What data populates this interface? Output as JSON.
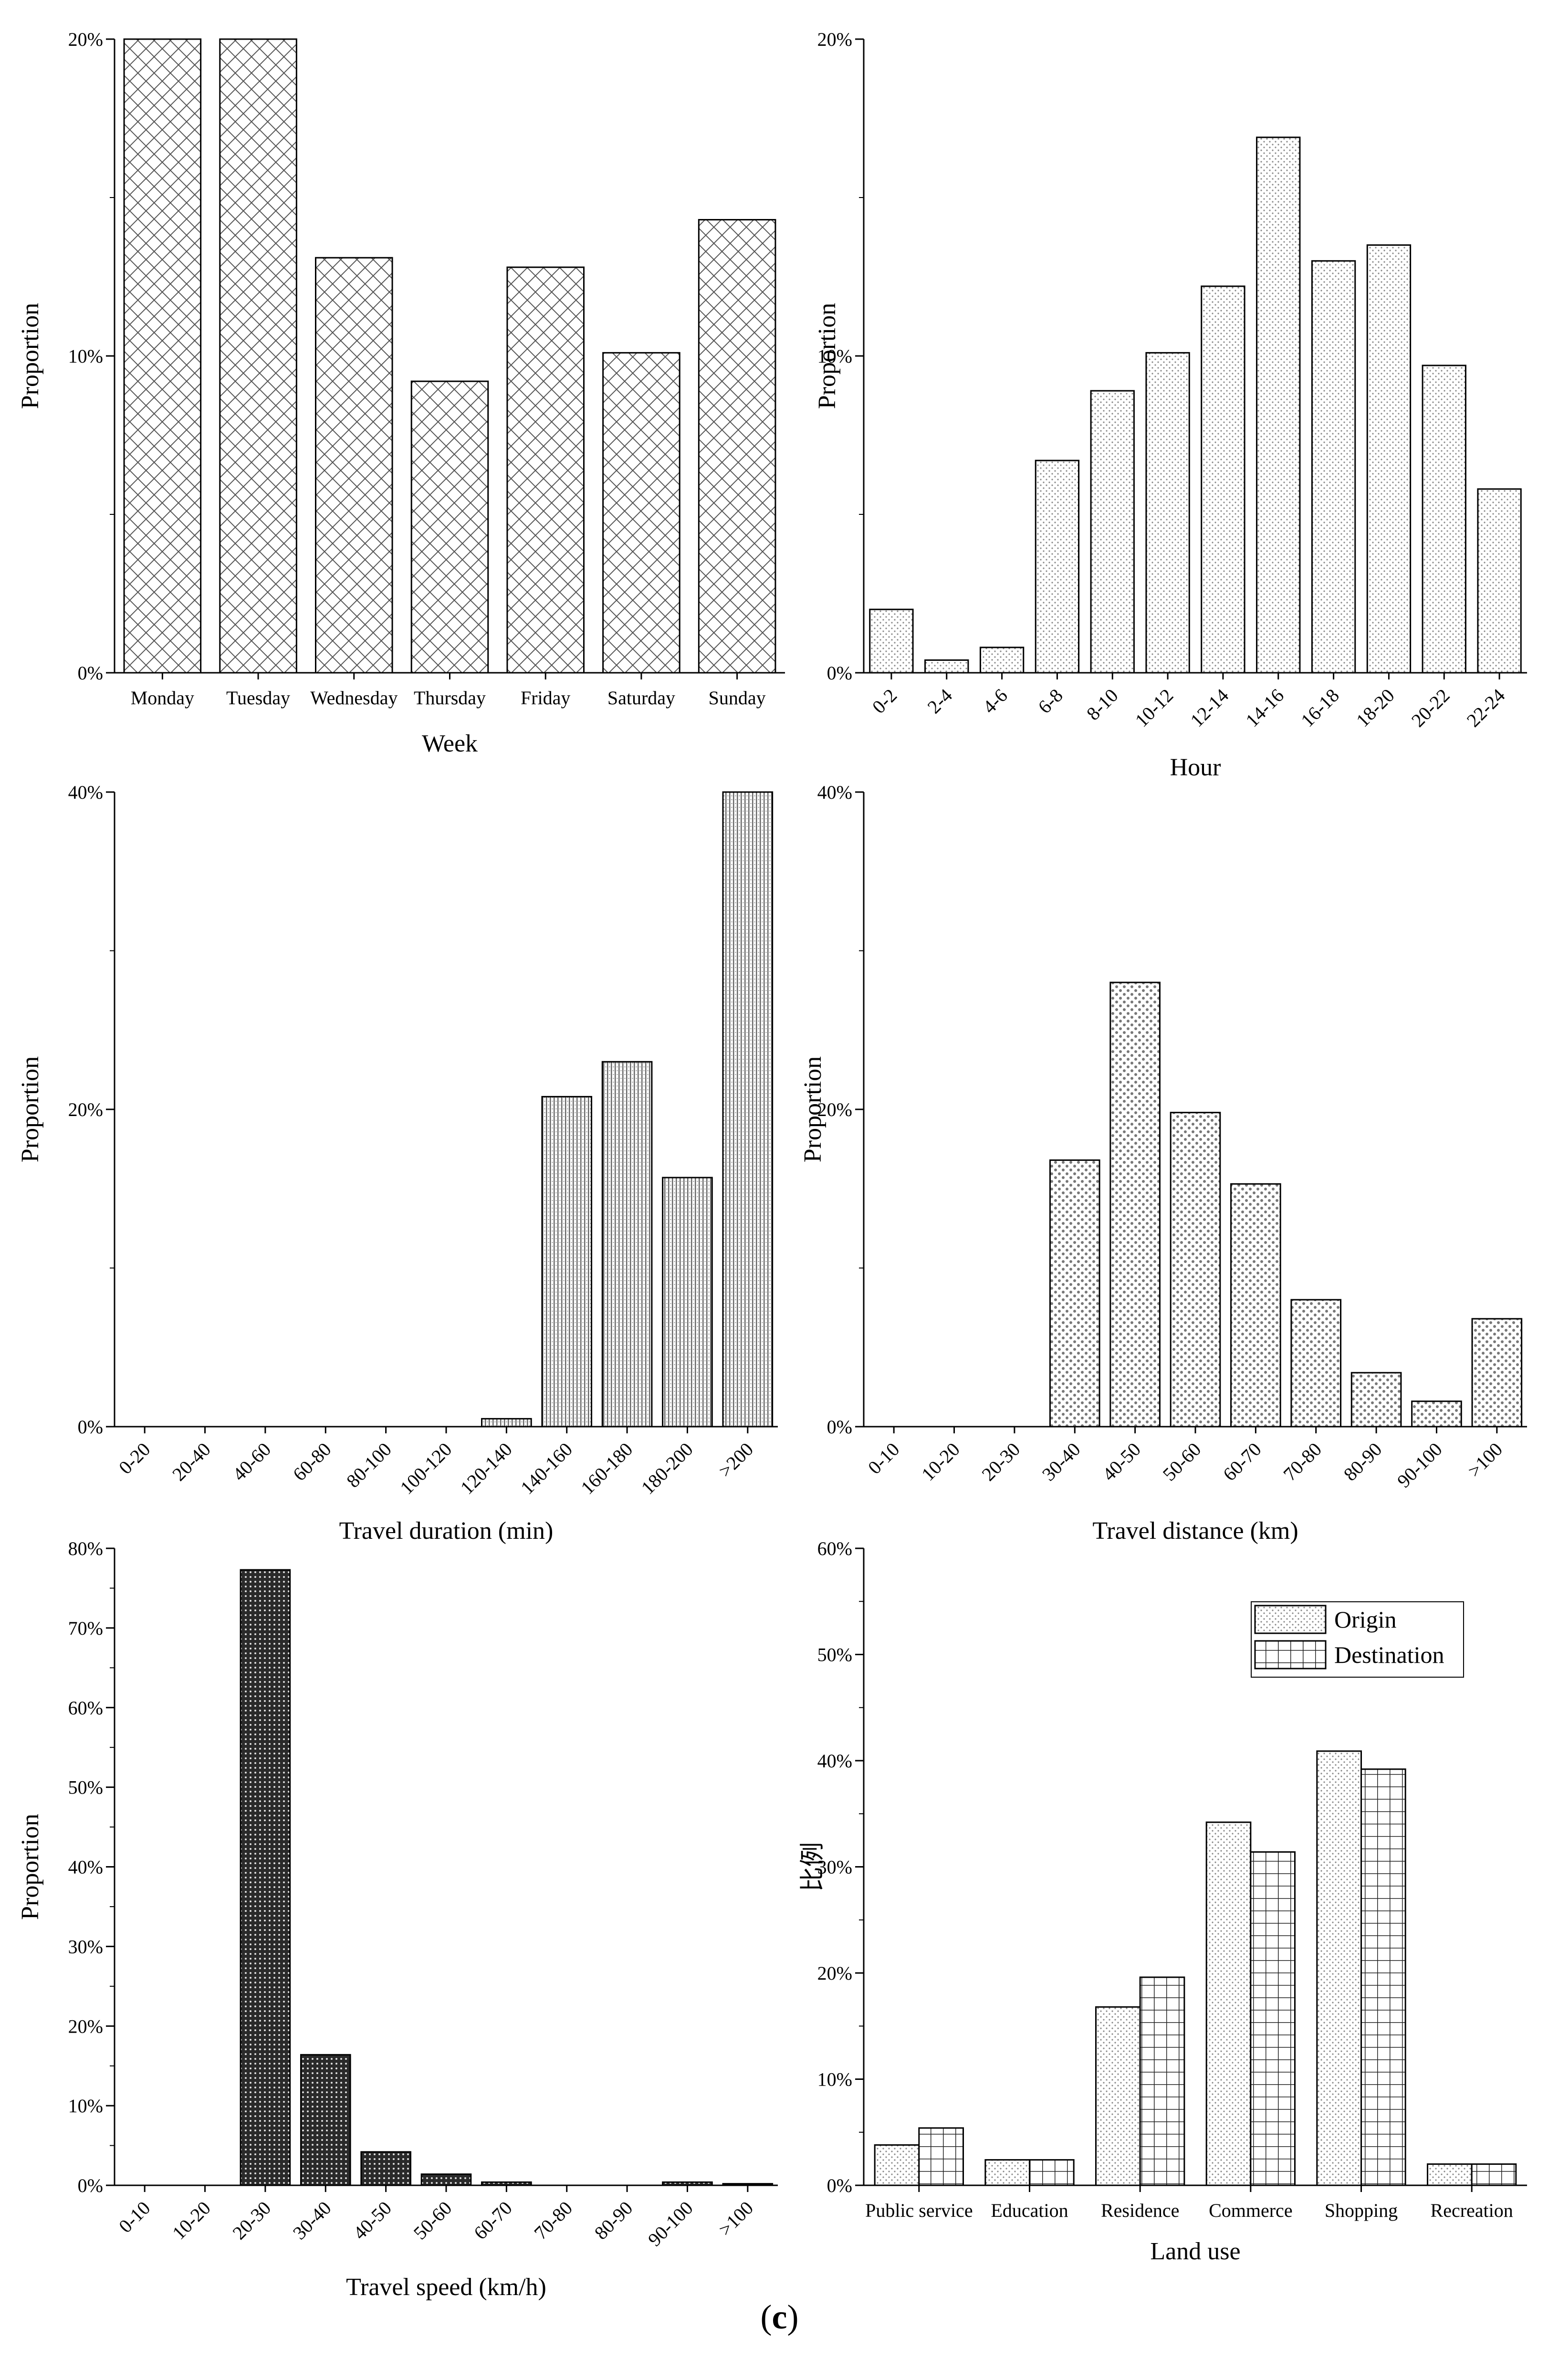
{
  "caption": {
    "open": "(",
    "letter": "c",
    "close": ")"
  },
  "chart_data": [
    {
      "id": "week",
      "type": "bar",
      "title": "",
      "xlabel": "Week",
      "ylabel": "Proportion",
      "ylim": [
        0,
        20
      ],
      "yticks": [
        "0%",
        "10%",
        "20%"
      ],
      "categories": [
        "Monday",
        "Tuesday",
        "Wednesday",
        "Thursday",
        "Friday",
        "Saturday",
        "Sunday"
      ],
      "values": [
        20.0,
        20.0,
        13.1,
        9.2,
        12.8,
        10.1,
        14.3
      ],
      "pattern": "crosshatch"
    },
    {
      "id": "hour",
      "type": "bar",
      "title": "",
      "xlabel": "Hour",
      "ylabel": "Proportion",
      "ylim": [
        0,
        20
      ],
      "yticks": [
        "0%",
        "10%",
        "20%"
      ],
      "categories": [
        "0-2",
        "2-4",
        "4-6",
        "6-8",
        "8-10",
        "10-12",
        "12-14",
        "14-16",
        "16-18",
        "18-20",
        "20-22",
        "22-24"
      ],
      "values": [
        2.0,
        0.4,
        0.8,
        6.7,
        8.9,
        10.1,
        12.2,
        16.9,
        13.0,
        13.5,
        9.7,
        5.8
      ],
      "pattern": "dots"
    },
    {
      "id": "duration",
      "type": "bar",
      "title": "",
      "xlabel": "Travel duration (min)",
      "ylabel": "Proportion",
      "ylim": [
        0,
        40
      ],
      "yticks": [
        "0%",
        "20%",
        "40%"
      ],
      "categories": [
        "0-20",
        "20-40",
        "40-60",
        "60-80",
        "80-100",
        "100-120",
        "120-140",
        "140-160",
        "160-180",
        "180-200",
        ">200"
      ],
      "values": [
        0,
        0,
        0,
        0,
        0,
        0,
        0.5,
        20.8,
        23.0,
        15.7,
        40.0
      ],
      "pattern": "vlines"
    },
    {
      "id": "distance",
      "type": "bar",
      "title": "",
      "xlabel": "Travel distance (km)",
      "ylabel": "Proportion",
      "ylim": [
        0,
        40
      ],
      "yticks": [
        "0%",
        "20%",
        "40%"
      ],
      "categories": [
        "0-10",
        "10-20",
        "20-30",
        "30-40",
        "40-50",
        "50-60",
        "60-70",
        "70-80",
        "80-90",
        "90-100",
        ">100"
      ],
      "values": [
        0,
        0,
        0,
        16.8,
        28.0,
        19.8,
        15.3,
        8.0,
        3.4,
        1.6,
        6.8
      ],
      "pattern": "densedots"
    },
    {
      "id": "speed",
      "type": "bar",
      "title": "",
      "xlabel": "Travel speed (km/h)",
      "ylabel": "Proportion",
      "ylim": [
        0,
        80
      ],
      "yticks": [
        "0%",
        "10%",
        "20%",
        "30%",
        "40%",
        "50%",
        "60%",
        "70%",
        "80%"
      ],
      "categories": [
        "0-10",
        "10-20",
        "20-30",
        "30-40",
        "40-50",
        "50-60",
        "60-70",
        "70-80",
        "80-90",
        "90-100",
        ">100"
      ],
      "values": [
        0,
        0,
        77.3,
        16.4,
        4.2,
        1.4,
        0.4,
        0,
        0,
        0.4,
        0.2
      ],
      "pattern": "dark"
    },
    {
      "id": "landuse",
      "type": "bar",
      "title": "",
      "xlabel": "Land use",
      "ylabel": "比例",
      "ylim": [
        0,
        60
      ],
      "yticks": [
        "0%",
        "10%",
        "20%",
        "30%",
        "40%",
        "50%",
        "60%"
      ],
      "categories": [
        "Public service",
        "Education",
        "Residence",
        "Commerce",
        "Shopping",
        "Recreation"
      ],
      "series": [
        {
          "name": "Origin",
          "values": [
            3.8,
            2.4,
            16.8,
            34.2,
            40.9,
            2.0
          ],
          "pattern": "dots"
        },
        {
          "name": "Destination",
          "values": [
            5.4,
            2.4,
            19.6,
            31.4,
            39.2,
            2.0
          ],
          "pattern": "grid"
        }
      ],
      "legend": "top-right"
    }
  ]
}
